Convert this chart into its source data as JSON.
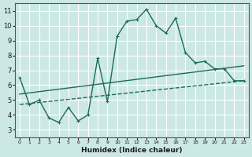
{
  "xlabel": "Humidex (Indice chaleur)",
  "bg_color": "#cce8e6",
  "grid_color": "#ffffff",
  "line_color": "#1a6b5a",
  "xlim": [
    -0.5,
    23.5
  ],
  "ylim": [
    2.5,
    11.5
  ],
  "xticks": [
    0,
    1,
    2,
    3,
    4,
    5,
    6,
    7,
    8,
    9,
    10,
    11,
    12,
    13,
    14,
    15,
    16,
    17,
    18,
    19,
    20,
    21,
    22,
    23
  ],
  "yticks": [
    3,
    4,
    5,
    6,
    7,
    8,
    9,
    10,
    11
  ],
  "series1_x": [
    0,
    1,
    2,
    3,
    4,
    5,
    6,
    7,
    8,
    9,
    10,
    11,
    12,
    13,
    14,
    15,
    16,
    17,
    18,
    19,
    20,
    21,
    22,
    23
  ],
  "series1_y": [
    6.5,
    4.7,
    5.0,
    3.8,
    3.5,
    4.5,
    3.6,
    4.0,
    7.8,
    4.9,
    9.3,
    10.3,
    10.4,
    11.1,
    10.0,
    9.5,
    10.5,
    8.2,
    7.5,
    7.6,
    7.1,
    7.1,
    6.3,
    6.3
  ],
  "series2_x": [
    0,
    23
  ],
  "series2_y": [
    4.7,
    6.3
  ],
  "series3_x": [
    0,
    23
  ],
  "series3_y": [
    5.4,
    7.3
  ]
}
